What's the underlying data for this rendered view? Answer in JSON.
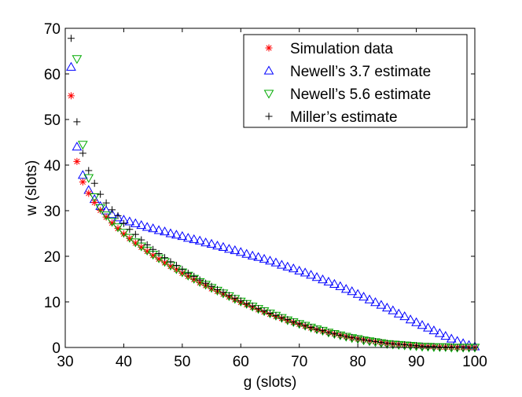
{
  "chart_data": {
    "type": "scatter",
    "title": "",
    "xlabel": "g (slots)",
    "ylabel": "w (slots)",
    "xlim": [
      30,
      100
    ],
    "ylim": [
      0,
      70
    ],
    "xticks": [
      30,
      40,
      50,
      60,
      70,
      80,
      90,
      100
    ],
    "yticks": [
      0,
      10,
      20,
      30,
      40,
      50,
      60,
      70
    ],
    "grid": false,
    "legend_position": "top-right",
    "series": [
      {
        "name": "Simulation data",
        "marker": "asterisk",
        "color": "#ff0000",
        "x": [
          31,
          32,
          33,
          34,
          35,
          36,
          37,
          38,
          39,
          40,
          41,
          42,
          43,
          44,
          45,
          46,
          47,
          48,
          49,
          50,
          51,
          52,
          53,
          54,
          55,
          56,
          57,
          58,
          59,
          60,
          61,
          62,
          63,
          64,
          65,
          66,
          67,
          68,
          69,
          70,
          71,
          72,
          73,
          74,
          75,
          76,
          77,
          78,
          79,
          80,
          81,
          82,
          83,
          84,
          85,
          86,
          87,
          88,
          89,
          90,
          91,
          92,
          93,
          94,
          95,
          96,
          97,
          98,
          99,
          100
        ],
        "y": [
          55.2,
          40.8,
          36.3,
          33.8,
          31.8,
          30.1,
          28.6,
          27.3,
          26.1,
          24.9,
          23.9,
          22.9,
          22.0,
          21.1,
          20.2,
          19.4,
          18.6,
          17.8,
          17.1,
          16.3,
          15.6,
          14.9,
          14.2,
          13.6,
          12.9,
          12.3,
          11.7,
          11.1,
          10.5,
          9.9,
          9.4,
          8.8,
          8.3,
          7.8,
          7.3,
          6.8,
          6.4,
          5.9,
          5.5,
          5.1,
          4.7,
          4.3,
          3.9,
          3.6,
          3.3,
          3.0,
          2.7,
          2.4,
          2.1,
          1.9,
          1.7,
          1.5,
          1.3,
          1.1,
          0.9,
          0.8,
          0.7,
          0.6,
          0.5,
          0.4,
          0.3,
          0.2,
          0.2,
          0.1,
          0.1,
          0.1,
          0.0,
          0.0,
          0.0,
          0.0
        ]
      },
      {
        "name": "Newell’s 3.7 estimate",
        "marker": "triangle-up",
        "color": "#0000ff",
        "x": [
          31,
          32,
          33,
          34,
          35,
          36,
          37,
          38,
          39,
          40,
          41,
          42,
          43,
          44,
          45,
          46,
          47,
          48,
          49,
          50,
          51,
          52,
          53,
          54,
          55,
          56,
          57,
          58,
          59,
          60,
          61,
          62,
          63,
          64,
          65,
          66,
          67,
          68,
          69,
          70,
          71,
          72,
          73,
          74,
          75,
          76,
          77,
          78,
          79,
          80,
          81,
          82,
          83,
          84,
          85,
          86,
          87,
          88,
          89,
          90,
          91,
          92,
          93,
          94,
          95,
          96,
          97,
          98,
          99,
          100
        ],
        "y": [
          61.5,
          44.0,
          37.8,
          34.5,
          32.5,
          31.0,
          30.0,
          29.2,
          28.5,
          28.0,
          27.6,
          27.2,
          26.8,
          26.4,
          26.1,
          25.7,
          25.4,
          25.0,
          24.7,
          24.4,
          24.0,
          23.7,
          23.4,
          23.0,
          22.7,
          22.3,
          22.0,
          21.6,
          21.3,
          20.9,
          20.5,
          20.1,
          19.8,
          19.4,
          19.0,
          18.6,
          18.1,
          17.7,
          17.3,
          16.8,
          16.4,
          15.9,
          15.4,
          14.9,
          14.4,
          13.9,
          13.4,
          12.8,
          12.3,
          11.7,
          11.1,
          10.5,
          9.9,
          9.3,
          8.7,
          8.1,
          7.4,
          6.8,
          6.1,
          5.5,
          4.9,
          4.3,
          3.7,
          3.1,
          2.5,
          1.9,
          1.4,
          0.9,
          0.5,
          0.2
        ]
      },
      {
        "name": "Newell’s 5.6 estimate",
        "marker": "triangle-down",
        "color": "#00aa00",
        "x": [
          32,
          33,
          34,
          35,
          36,
          37,
          38,
          39,
          40,
          41,
          42,
          43,
          44,
          45,
          46,
          47,
          48,
          49,
          50,
          51,
          52,
          53,
          54,
          55,
          56,
          57,
          58,
          59,
          60,
          61,
          62,
          63,
          64,
          65,
          66,
          67,
          68,
          69,
          70,
          71,
          72,
          73,
          74,
          75,
          76,
          77,
          78,
          79,
          80,
          81,
          82,
          83,
          84,
          85,
          86,
          87,
          88,
          89,
          90,
          91,
          92,
          93,
          94,
          95,
          96,
          97,
          98,
          99,
          100
        ],
        "y": [
          63.3,
          44.5,
          37.2,
          33.0,
          30.6,
          29.0,
          27.6,
          26.4,
          25.2,
          24.1,
          23.1,
          22.2,
          21.3,
          20.4,
          19.6,
          18.8,
          18.0,
          17.2,
          16.5,
          15.8,
          15.1,
          14.4,
          13.8,
          13.1,
          12.5,
          11.9,
          11.3,
          10.7,
          10.1,
          9.6,
          9.0,
          8.5,
          8.0,
          7.5,
          7.0,
          6.5,
          6.0,
          5.6,
          5.2,
          4.8,
          4.4,
          4.0,
          3.7,
          3.3,
          3.0,
          2.7,
          2.4,
          2.1,
          1.9,
          1.6,
          1.4,
          1.2,
          1.0,
          0.8,
          0.7,
          0.6,
          0.5,
          0.4,
          0.3,
          0.2,
          0.2,
          0.1,
          0.1,
          0.1,
          0.0,
          0.0,
          0.0,
          0.0,
          0.0
        ]
      },
      {
        "name": "Miller’s estimate",
        "marker": "plus",
        "color": "#000000",
        "x": [
          31,
          32,
          33,
          34,
          35,
          36,
          37,
          38,
          39,
          40,
          41,
          42,
          43,
          44,
          45,
          46,
          47,
          48,
          49,
          50,
          51,
          52,
          53,
          54,
          55,
          56,
          57,
          58,
          59,
          60,
          61,
          62,
          63,
          64,
          65,
          66,
          67,
          68,
          69,
          70,
          71,
          72,
          73,
          74,
          75,
          76,
          77,
          78,
          79,
          80,
          81,
          82,
          83,
          84,
          85,
          86,
          87,
          88,
          89,
          90,
          91,
          92,
          93,
          94,
          95,
          96,
          97,
          98,
          99,
          100
        ],
        "y": [
          67.8,
          49.5,
          42.6,
          38.8,
          36.0,
          33.6,
          31.7,
          30.2,
          28.9,
          27.2,
          25.9,
          24.8,
          23.6,
          22.5,
          21.5,
          20.6,
          19.7,
          18.8,
          18.0,
          17.1,
          16.3,
          15.6,
          14.8,
          14.1,
          13.4,
          12.7,
          12.1,
          11.4,
          10.8,
          10.2,
          9.6,
          9.1,
          8.5,
          8.0,
          7.5,
          7.0,
          6.5,
          6.1,
          5.6,
          5.2,
          4.8,
          4.4,
          4.0,
          3.7,
          3.3,
          3.0,
          2.7,
          2.4,
          2.2,
          1.9,
          1.7,
          1.5,
          1.3,
          1.1,
          0.9,
          0.8,
          0.7,
          0.6,
          0.5,
          0.4,
          0.3,
          0.2,
          0.2,
          0.1,
          0.1,
          0.1,
          0.0,
          0.0,
          0.0,
          0.0
        ]
      }
    ]
  }
}
